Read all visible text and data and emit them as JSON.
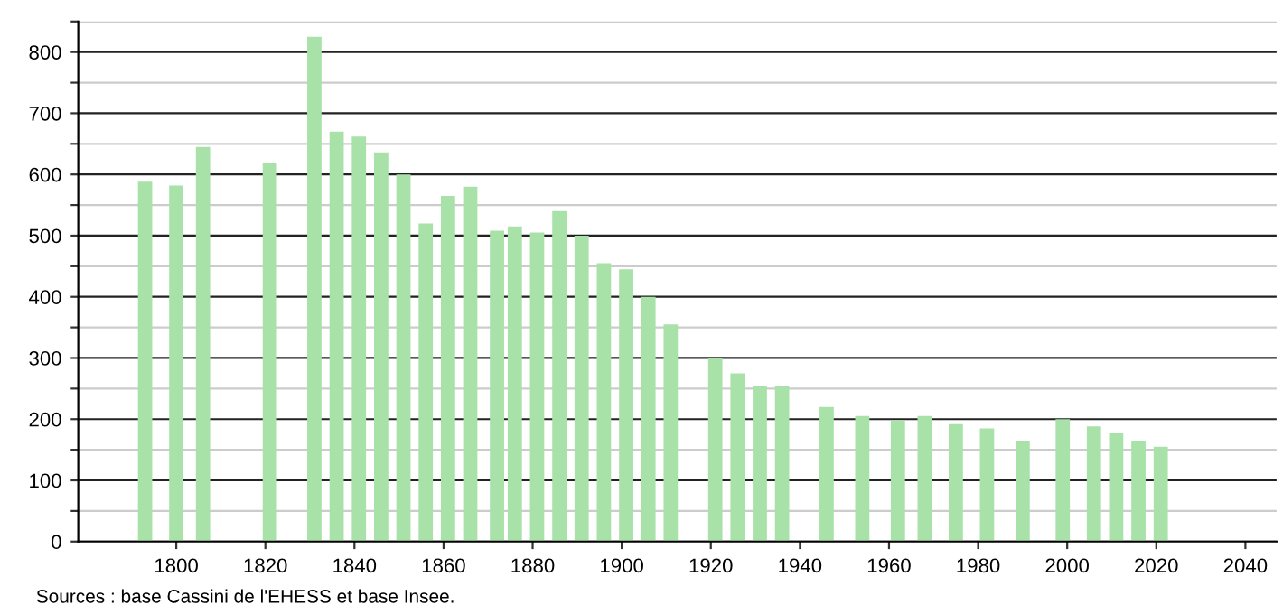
{
  "chart_data": {
    "type": "bar",
    "x": [
      1793,
      1800,
      1806,
      1821,
      1831,
      1836,
      1841,
      1846,
      1851,
      1856,
      1861,
      1866,
      1872,
      1876,
      1881,
      1886,
      1891,
      1896,
      1901,
      1906,
      1911,
      1921,
      1926,
      1931,
      1936,
      1946,
      1954,
      1962,
      1968,
      1975,
      1982,
      1990,
      1999,
      2006,
      2011,
      2016,
      2021
    ],
    "values": [
      588,
      582,
      645,
      618,
      825,
      670,
      662,
      636,
      600,
      520,
      565,
      580,
      508,
      515,
      505,
      540,
      500,
      455,
      445,
      400,
      355,
      300,
      275,
      255,
      255,
      220,
      205,
      198,
      205,
      192,
      185,
      165,
      200,
      188,
      178,
      165,
      155
    ],
    "color": "#a8e2a8",
    "xlim": [
      1778,
      2047
    ],
    "xticks": [
      1800,
      1820,
      1840,
      1860,
      1880,
      1900,
      1920,
      1940,
      1960,
      1980,
      2000,
      2020,
      2040
    ],
    "ylim": [
      0,
      850
    ],
    "yticks": [
      0,
      {
        "value": 50,
        "label": null
      },
      100,
      {
        "value": 150,
        "label": null
      },
      200,
      {
        "value": 250,
        "label": null
      },
      300,
      {
        "value": 350,
        "label": null
      },
      400,
      {
        "value": 450,
        "label": null
      },
      500,
      {
        "value": 550,
        "label": null
      },
      600,
      {
        "value": 650,
        "label": null
      },
      700,
      {
        "value": 750,
        "label": null
      },
      800,
      {
        "value": 850,
        "label": null
      }
    ],
    "grid": "y",
    "annotations": [
      "Sources : base Cassini de l'EHESS et base Insee."
    ]
  }
}
